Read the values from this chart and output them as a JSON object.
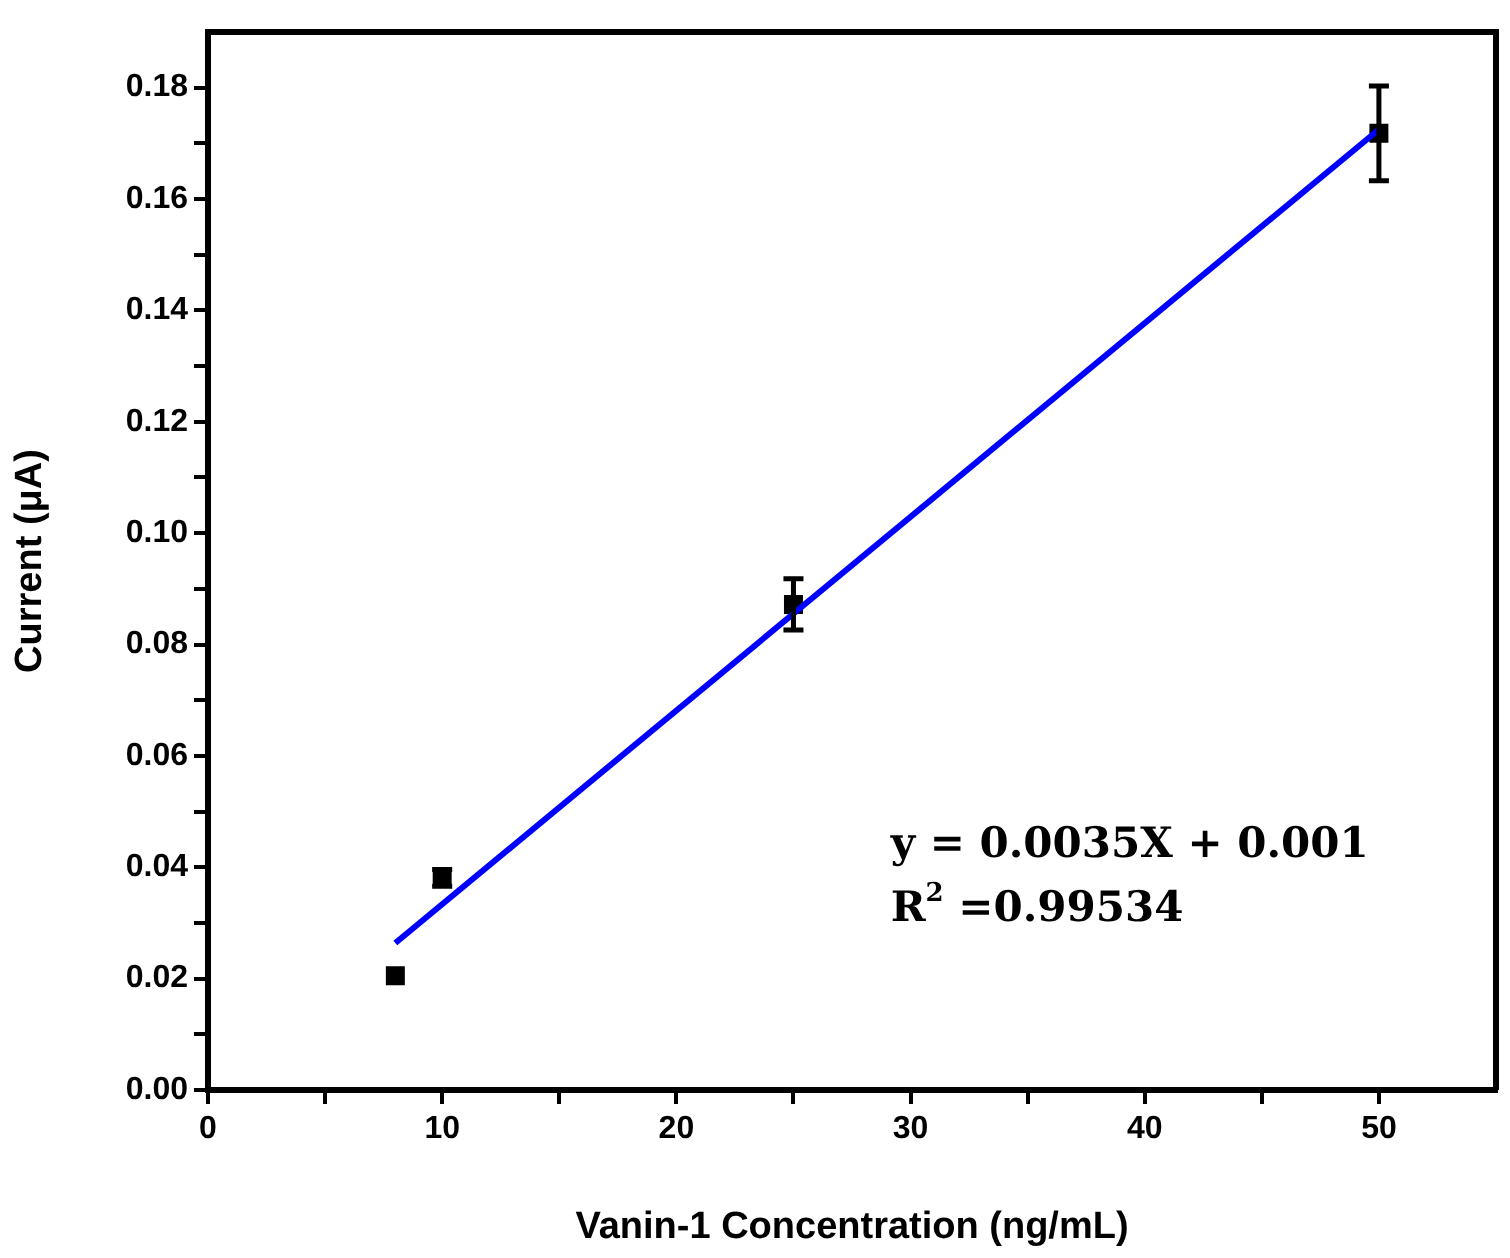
{
  "chart_data": {
    "type": "scatter",
    "xlabel": "Vanin-1 Concentration (ng/mL)",
    "ylabel": "Current (μA)",
    "xlim": [
      0,
      55
    ],
    "ylim": [
      0,
      0.19
    ],
    "xticks": [
      0,
      {
        "value": 5,
        "label": null
      },
      10,
      {
        "value": 15,
        "label": null
      },
      20,
      {
        "value": 25,
        "label": null
      },
      30,
      {
        "value": 35,
        "label": null
      },
      40,
      {
        "value": 45,
        "label": null
      },
      50
    ],
    "yticks": [
      {
        "value": 0,
        "label": "0.00"
      },
      {
        "value": 0.01,
        "label": null
      },
      {
        "value": 0.02,
        "label": "0.02"
      },
      {
        "value": 0.03,
        "label": null
      },
      {
        "value": 0.04,
        "label": "0.04"
      },
      {
        "value": 0.05,
        "label": null
      },
      {
        "value": 0.06,
        "label": "0.06"
      },
      {
        "value": 0.07,
        "label": null
      },
      {
        "value": 0.08,
        "label": "0.08"
      },
      {
        "value": 0.09,
        "label": null
      },
      {
        "value": 0.1,
        "label": "0.10"
      },
      {
        "value": 0.11,
        "label": null
      },
      {
        "value": 0.12,
        "label": "0.12"
      },
      {
        "value": 0.13,
        "label": null
      },
      {
        "value": 0.14,
        "label": "0.14"
      },
      {
        "value": 0.15,
        "label": null
      },
      {
        "value": 0.16,
        "label": "0.16"
      },
      {
        "value": 0.17,
        "label": null
      },
      {
        "value": 0.18,
        "label": "0.18"
      }
    ],
    "grid": false,
    "legend": false,
    "marker": "square",
    "series": [
      {
        "type": "scatter",
        "color": "#000000",
        "x": [
          8,
          10,
          25,
          50
        ],
        "values": [
          0.0205,
          0.0381,
          0.0872,
          0.1718
        ],
        "errors": [
          null,
          0.0015,
          0.0046,
          0.0085
        ]
      },
      {
        "type": "line",
        "color": "#0000ff",
        "x": [
          8,
          50
        ],
        "values": [
          0.0264,
          0.1725
        ],
        "line_style": "solid",
        "marker": "none"
      }
    ],
    "annotations": [
      "y = 0.0035X + 0.001",
      "R$^{2}$ =0.99534"
    ]
  }
}
